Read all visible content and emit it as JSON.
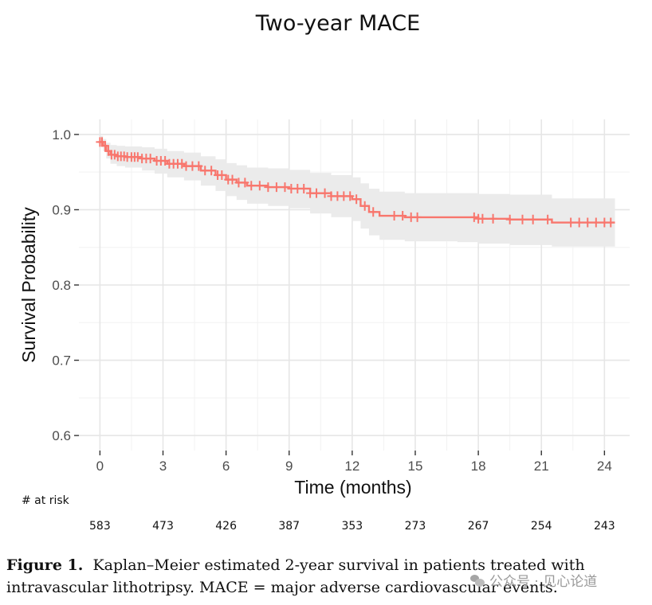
{
  "chart_data": {
    "type": "line",
    "subtype": "kaplan-meier",
    "title": "Two-year MACE",
    "xlabel": "Time (months)",
    "ylabel": "Survival Probability",
    "xlim": [
      -1.0,
      25.2
    ],
    "ylim": [
      0.58,
      1.02
    ],
    "xticks": [
      0,
      3,
      6,
      9,
      12,
      15,
      18,
      21,
      24
    ],
    "yticks": [
      0.6,
      0.7,
      0.8,
      0.9,
      1.0
    ],
    "ytick_labels": [
      "0.6",
      "0.7",
      "0.8",
      "0.9",
      "1.0"
    ],
    "series": [
      {
        "name": "Survival",
        "color": "#f8766d",
        "band_color": "#ebebeb",
        "x": [
          0,
          0.15,
          0.3,
          0.5,
          0.8,
          1.2,
          2.0,
          2.6,
          3.2,
          4.0,
          4.8,
          5.5,
          6.0,
          6.5,
          7.0,
          8.0,
          9.0,
          10.0,
          11.0,
          12.0,
          12.4,
          12.8,
          13.3,
          14.5,
          17.0,
          18.0,
          19.5,
          21.5,
          24.5
        ],
        "y": [
          0.99,
          0.985,
          0.978,
          0.973,
          0.971,
          0.97,
          0.968,
          0.965,
          0.961,
          0.958,
          0.952,
          0.946,
          0.94,
          0.936,
          0.932,
          0.93,
          0.928,
          0.922,
          0.918,
          0.914,
          0.905,
          0.897,
          0.892,
          0.89,
          0.89,
          0.888,
          0.887,
          0.883,
          0.883
        ],
        "lower": [
          0.984,
          0.978,
          0.968,
          0.961,
          0.958,
          0.956,
          0.952,
          0.948,
          0.943,
          0.939,
          0.932,
          0.925,
          0.918,
          0.913,
          0.908,
          0.905,
          0.902,
          0.895,
          0.89,
          0.885,
          0.875,
          0.866,
          0.86,
          0.858,
          0.857,
          0.855,
          0.853,
          0.851,
          0.851
        ],
        "upper": [
          0.998,
          0.994,
          0.989,
          0.986,
          0.985,
          0.984,
          0.983,
          0.981,
          0.978,
          0.976,
          0.971,
          0.967,
          0.962,
          0.959,
          0.956,
          0.955,
          0.953,
          0.949,
          0.946,
          0.943,
          0.935,
          0.928,
          0.924,
          0.922,
          0.922,
          0.921,
          0.92,
          0.915,
          0.915
        ],
        "censor_x": [
          0.0,
          0.1,
          0.25,
          0.4,
          0.55,
          0.7,
          0.85,
          1.0,
          1.15,
          1.3,
          1.5,
          1.65,
          1.8,
          2.0,
          2.2,
          2.4,
          2.7,
          2.9,
          3.1,
          3.3,
          3.5,
          3.7,
          3.9,
          4.1,
          4.4,
          4.7,
          5.0,
          5.3,
          5.6,
          5.8,
          6.1,
          6.3,
          6.6,
          6.9,
          7.2,
          7.6,
          8.0,
          8.4,
          8.8,
          9.1,
          9.4,
          9.7,
          10.0,
          10.3,
          10.7,
          11.0,
          11.3,
          11.6,
          11.9,
          12.2,
          12.6,
          13.0,
          14.0,
          14.4,
          14.8,
          15.1,
          17.8,
          18.0,
          18.2,
          18.7,
          19.5,
          20.1,
          20.6,
          21.3,
          22.4,
          22.8,
          23.2,
          23.6,
          24.0,
          24.3
        ]
      }
    ],
    "at_risk_label": "# at risk",
    "at_risk": [
      "583",
      "473",
      "426",
      "387",
      "353",
      "273",
      "267",
      "254",
      "243"
    ]
  },
  "caption": {
    "figure_label": "Figure 1.",
    "text": "Kaplan–Meier estimated 2-year survival in patients treated with intravascular lithotripsy. MACE = major adverse cardiovascular events."
  },
  "watermark": {
    "text": "公众号 · 见心论道"
  }
}
